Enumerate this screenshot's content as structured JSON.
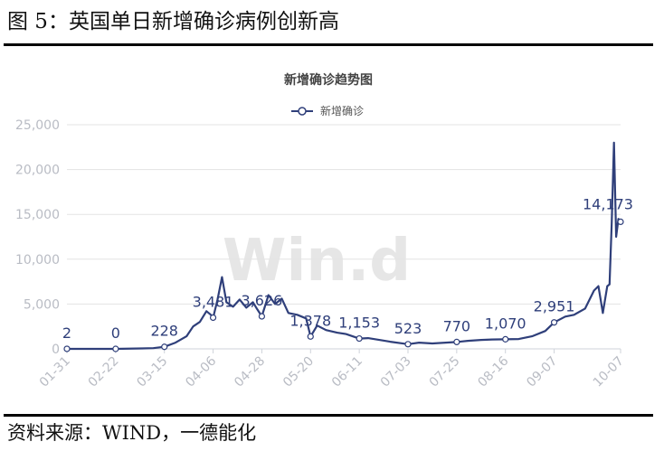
{
  "header": {
    "figure_title": "图 5：英国单日新增确诊病例创新高"
  },
  "footer": {
    "source": "资料来源：WIND，一德能化"
  },
  "watermark": "Win.d",
  "colors": {
    "series": "#2f3f7a",
    "grid": "#e3e3e3",
    "tick": "#b9bcc4"
  },
  "chart_data": {
    "type": "line",
    "title": "新增确诊趋势图",
    "legend": {
      "position": "top-center",
      "entries": [
        "新增确诊"
      ]
    },
    "xlabel": "",
    "ylabel": "",
    "ylim": [
      0,
      25000
    ],
    "yticks": [
      0,
      5000,
      10000,
      15000,
      20000,
      25000
    ],
    "ytick_labels": [
      "0",
      "5,000",
      "10,000",
      "15,000",
      "20,000",
      "25,000"
    ],
    "grid": true,
    "xticks": [
      "01-31",
      "02-22",
      "03-15",
      "04-06",
      "04-28",
      "05-20",
      "06-11",
      "07-03",
      "07-25",
      "08-16",
      "09-07",
      "10-07"
    ],
    "series": [
      {
        "name": "新增确诊",
        "points": [
          [
            "01-31",
            2
          ],
          [
            "02-10",
            0
          ],
          [
            "02-22",
            0
          ],
          [
            "03-05",
            50
          ],
          [
            "03-10",
            80
          ],
          [
            "03-15",
            228
          ],
          [
            "03-20",
            700
          ],
          [
            "03-25",
            1400
          ],
          [
            "03-28",
            2500
          ],
          [
            "03-31",
            3000
          ],
          [
            "04-01",
            3400
          ],
          [
            "04-03",
            4200
          ],
          [
            "04-05",
            3800
          ],
          [
            "04-06",
            3481
          ],
          [
            "04-08",
            5500
          ],
          [
            "04-10",
            8000
          ],
          [
            "04-12",
            5200
          ],
          [
            "04-15",
            4700
          ],
          [
            "04-18",
            5500
          ],
          [
            "04-21",
            4600
          ],
          [
            "04-24",
            5200
          ],
          [
            "04-26",
            4400
          ],
          [
            "04-28",
            3626
          ],
          [
            "05-01",
            6000
          ],
          [
            "05-04",
            5000
          ],
          [
            "05-07",
            5600
          ],
          [
            "05-10",
            4000
          ],
          [
            "05-14",
            3800
          ],
          [
            "05-18",
            3400
          ],
          [
            "05-20",
            1378
          ],
          [
            "05-23",
            2600
          ],
          [
            "05-27",
            2100
          ],
          [
            "06-01",
            1800
          ],
          [
            "06-05",
            1650
          ],
          [
            "06-11",
            1153
          ],
          [
            "06-15",
            1200
          ],
          [
            "06-20",
            1000
          ],
          [
            "06-25",
            800
          ],
          [
            "07-03",
            523
          ],
          [
            "07-08",
            700
          ],
          [
            "07-14",
            600
          ],
          [
            "07-20",
            700
          ],
          [
            "07-25",
            770
          ],
          [
            "07-30",
            900
          ],
          [
            "08-05",
            1000
          ],
          [
            "08-10",
            1050
          ],
          [
            "08-16",
            1070
          ],
          [
            "08-22",
            1100
          ],
          [
            "08-28",
            1400
          ],
          [
            "09-03",
            2000
          ],
          [
            "09-07",
            2951
          ],
          [
            "09-12",
            3600
          ],
          [
            "09-16",
            3800
          ],
          [
            "09-21",
            4500
          ],
          [
            "09-25",
            6500
          ],
          [
            "09-27",
            7000
          ],
          [
            "09-29",
            4000
          ],
          [
            "10-01",
            7000
          ],
          [
            "10-02",
            7200
          ],
          [
            "10-03",
            14000
          ],
          [
            "10-04",
            23000
          ],
          [
            "10-05",
            12500
          ],
          [
            "10-06",
            14500
          ],
          [
            "10-07",
            14173
          ]
        ]
      }
    ],
    "data_labels": [
      {
        "x": "01-31",
        "y": 2,
        "text": "2"
      },
      {
        "x": "02-22",
        "y": 0,
        "text": "0"
      },
      {
        "x": "03-15",
        "y": 228,
        "text": "228"
      },
      {
        "x": "04-06",
        "y": 3481,
        "text": "3,481"
      },
      {
        "x": "04-28",
        "y": 3626,
        "text": "3,626"
      },
      {
        "x": "05-20",
        "y": 1378,
        "text": "1,378"
      },
      {
        "x": "06-11",
        "y": 1153,
        "text": "1,153"
      },
      {
        "x": "07-03",
        "y": 523,
        "text": "523"
      },
      {
        "x": "07-25",
        "y": 770,
        "text": "770"
      },
      {
        "x": "08-16",
        "y": 1070,
        "text": "1,070"
      },
      {
        "x": "09-07",
        "y": 2951,
        "text": "2,951"
      },
      {
        "x": "10-07",
        "y": 14173,
        "text": "14,173"
      }
    ]
  }
}
